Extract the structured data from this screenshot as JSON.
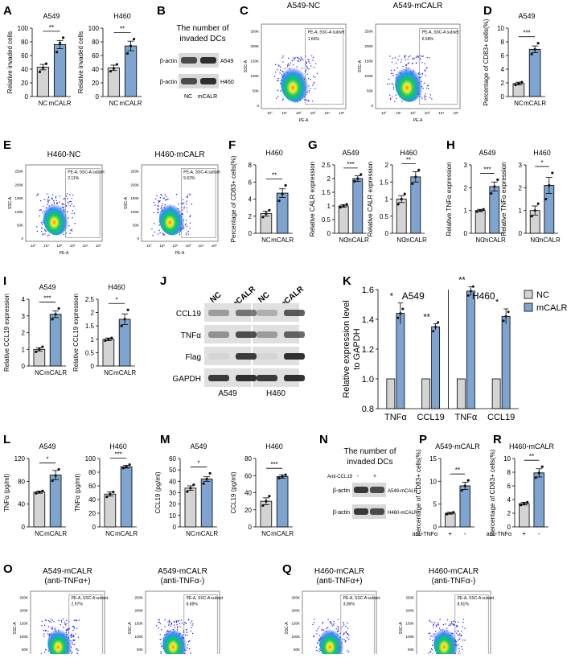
{
  "palette": {
    "nc_fill": "#d4d4d4",
    "mcalr_fill": "#7ea4cf",
    "line": "#000000",
    "point": "#111111",
    "density_low": "#1a1aff",
    "density_mid": "#11cc55",
    "density_high": "#ffee33",
    "density_peak": "#ff8800"
  },
  "panels": {
    "A": "A",
    "B": "B",
    "C": "C",
    "D": "D",
    "E": "E",
    "F": "F",
    "G": "G",
    "H": "H",
    "I": "I",
    "J": "J",
    "K": "K",
    "L": "L",
    "M": "M",
    "N": "N",
    "O": "O",
    "P": "P",
    "Q": "Q",
    "R": "R"
  },
  "flow_common": {
    "xlabel": "PE-A",
    "ylabel": "SSC-A",
    "gate": "PE-A, SSC-A subset",
    "yticks": [
      "250K",
      "200K",
      "150K",
      "100K",
      "50K",
      "0"
    ],
    "xticks": [
      "10°",
      "10¹",
      "10²",
      "10³",
      "10⁴",
      "10⁵"
    ]
  },
  "flow_plots": [
    {
      "title": "A549-NC",
      "pct": "1.66%"
    },
    {
      "title": "A549-mCALR",
      "pct": "6.58%"
    },
    {
      "title": "H460-NC",
      "pct": "2.11%"
    },
    {
      "title": "H460-mCALR",
      "pct": "5.62%"
    },
    {
      "title": "A549-mCALR\n(anti-TNFα+)",
      "pct": "2.97%"
    },
    {
      "title": "A549-mCALR\n(anti-TNFα-)",
      "pct": "8.68%"
    },
    {
      "title": "H460-mCALR\n(anti-TNFα+)",
      "pct": "3.06%"
    },
    {
      "title": "H460-mCALR\n(anti-TNFα-)",
      "pct": "8.61%"
    }
  ],
  "blot_B": {
    "title": "The number of\ninvaded DCs",
    "rows": [
      "β-actin",
      "β-actin"
    ],
    "cells": [
      "A549",
      "H460"
    ],
    "lanes": [
      "NC",
      "mCALR"
    ]
  },
  "blot_J": {
    "rows": [
      "CCL19",
      "TNFα",
      "Flag",
      "GAPDH"
    ],
    "lanes": [
      "NC",
      "mCALR",
      "NC",
      "mCALR"
    ],
    "groups": [
      "A549",
      "H460"
    ]
  },
  "blot_N": {
    "title": "The number of\ninvaded DCs",
    "treat_label": "Anti-CCL19",
    "treat": [
      "-",
      "+"
    ],
    "rows": [
      "β-actin",
      "β-actin"
    ],
    "cells": [
      "A549-mCALR",
      "H460-mCALR"
    ]
  },
  "chart_data": [
    {
      "panel": "A",
      "type": "bar",
      "title": "A549",
      "ylabel": "Relative invaded cells",
      "categories": [
        "NC",
        "mCALR"
      ],
      "values": [
        43,
        76
      ],
      "errors": [
        4,
        6
      ],
      "points": [
        [
          36,
          42,
          48
        ],
        [
          65,
          78,
          86
        ]
      ],
      "ylim": [
        0,
        100
      ],
      "yticks": [
        0,
        20,
        40,
        60,
        80,
        100
      ],
      "sig": "**"
    },
    {
      "panel": "A",
      "type": "bar",
      "title": "H460",
      "ylabel": "Relative invaded cells",
      "categories": [
        "NC",
        "mCALR"
      ],
      "values": [
        42,
        74
      ],
      "errors": [
        4,
        7
      ],
      "points": [
        [
          37,
          41,
          47
        ],
        [
          63,
          74,
          84
        ]
      ],
      "ylim": [
        0,
        100
      ],
      "yticks": [
        0,
        20,
        40,
        60,
        80,
        100
      ],
      "sig": "**"
    },
    {
      "panel": "D",
      "type": "bar",
      "title": "A549",
      "ylabel": "Percentage of CD83+ cells(%)",
      "categories": [
        "NC",
        "mCALR"
      ],
      "values": [
        1.9,
        6.9
      ],
      "errors": [
        0.2,
        0.5
      ],
      "points": [
        [
          1.7,
          1.9,
          2.1
        ],
        [
          6.2,
          6.9,
          7.8
        ]
      ],
      "ylim": [
        0,
        10
      ],
      "yticks": [
        0,
        2,
        4,
        6,
        8,
        10
      ],
      "sig": "***"
    },
    {
      "panel": "F",
      "type": "bar",
      "title": "H460",
      "ylabel": "Percentage of CD83+ cells(%)",
      "categories": [
        "NC",
        "mCALR"
      ],
      "values": [
        2.3,
        4.7
      ],
      "errors": [
        0.3,
        0.5
      ],
      "points": [
        [
          1.9,
          2.3,
          2.7
        ],
        [
          3.8,
          4.6,
          5.6
        ]
      ],
      "ylim": [
        0,
        8
      ],
      "yticks": [
        0,
        2,
        4,
        6,
        8
      ],
      "sig": "**"
    },
    {
      "panel": "G",
      "type": "bar",
      "title": "A549",
      "ylabel": "Relative CALR expression",
      "categories": [
        "NC",
        "mCALR"
      ],
      "values": [
        1.0,
        2.0
      ],
      "errors": [
        0.05,
        0.1
      ],
      "points": [
        [
          0.95,
          1.0,
          1.06
        ],
        [
          1.9,
          2.0,
          2.15
        ]
      ],
      "ylim": [
        0,
        2.5
      ],
      "yticks": [
        0.0,
        0.5,
        1.0,
        1.5,
        2.0,
        2.5
      ],
      "sig": "***"
    },
    {
      "panel": "G",
      "type": "bar",
      "title": "H460",
      "ylabel": "Relative CALR expression",
      "categories": [
        "NC",
        "mCALR"
      ],
      "values": [
        1.0,
        1.65
      ],
      "errors": [
        0.1,
        0.15
      ],
      "points": [
        [
          0.85,
          1.0,
          1.15
        ],
        [
          1.45,
          1.65,
          1.85
        ]
      ],
      "ylim": [
        0,
        2.0
      ],
      "yticks": [
        0.0,
        0.5,
        1.0,
        1.5,
        2.0
      ],
      "sig": "**"
    },
    {
      "panel": "H",
      "type": "bar",
      "title": "A549",
      "ylabel": "Relative TNFα expression",
      "categories": [
        "NC",
        "mCALR"
      ],
      "values": [
        1.0,
        2.05
      ],
      "errors": [
        0.05,
        0.2
      ],
      "points": [
        [
          0.95,
          1.0,
          1.05
        ],
        [
          1.75,
          2.05,
          2.35
        ]
      ],
      "ylim": [
        0,
        3
      ],
      "yticks": [
        0,
        1,
        2,
        3
      ],
      "sig": "***"
    },
    {
      "panel": "H",
      "type": "bar",
      "title": "H460",
      "ylabel": "Relative TNFα expression",
      "categories": [
        "NC",
        "mCALR"
      ],
      "values": [
        1.0,
        2.1
      ],
      "errors": [
        0.2,
        0.35
      ],
      "points": [
        [
          0.75,
          1.0,
          1.3
        ],
        [
          1.5,
          2.1,
          2.65
        ]
      ],
      "ylim": [
        0,
        3
      ],
      "yticks": [
        0,
        1,
        2,
        3
      ],
      "sig": "*"
    },
    {
      "panel": "I",
      "type": "bar",
      "title": "A549",
      "ylabel": "Relative CCL19 expression",
      "categories": [
        "NC",
        "mCALR"
      ],
      "values": [
        1.0,
        3.1
      ],
      "errors": [
        0.1,
        0.2
      ],
      "points": [
        [
          0.85,
          1.0,
          1.15
        ],
        [
          2.8,
          3.1,
          3.45
        ]
      ],
      "ylim": [
        0,
        4
      ],
      "yticks": [
        0,
        1,
        2,
        3,
        4
      ],
      "sig": "***"
    },
    {
      "panel": "I",
      "type": "bar",
      "title": "H460",
      "ylabel": "Relative CCL19 expression",
      "categories": [
        "NC",
        "mCALR"
      ],
      "values": [
        1.0,
        1.75
      ],
      "errors": [
        0.05,
        0.2
      ],
      "points": [
        [
          0.95,
          1.0,
          1.05
        ],
        [
          1.5,
          1.75,
          2.1
        ]
      ],
      "ylim": [
        0,
        2.5
      ],
      "yticks": [
        0.0,
        0.5,
        1.0,
        1.5,
        2.0,
        2.5
      ],
      "sig": "*"
    },
    {
      "panel": "K",
      "type": "bar",
      "ylabel": "Relative expression level\nto GAPDH",
      "groups": [
        "A549",
        "H460"
      ],
      "categories": [
        "TNFα",
        "CCL19",
        "TNFα",
        "CCL19"
      ],
      "series": [
        {
          "name": "NC",
          "values": [
            1.0,
            1.0,
            1.0,
            1.0
          ]
        },
        {
          "name": "mCALR",
          "values": [
            1.44,
            1.35,
            1.59,
            1.42
          ]
        }
      ],
      "errors": [
        0.07,
        0.02,
        0.03,
        0.05
      ],
      "sig": [
        "*",
        "**",
        "**",
        "*"
      ],
      "ylim": [
        0.8,
        1.6
      ],
      "yticks": [
        0.8,
        1.0,
        1.2,
        1.4,
        1.6
      ]
    },
    {
      "panel": "L",
      "type": "bar",
      "title": "A549",
      "ylabel": "TNFα (pg/ml)",
      "categories": [
        "NC",
        "mCALR"
      ],
      "values": [
        61,
        91
      ],
      "errors": [
        2,
        8
      ],
      "points": [
        [
          59,
          61,
          63
        ],
        [
          81,
          90,
          101
        ]
      ],
      "ylim": [
        0,
        120
      ],
      "yticks": [
        0,
        40,
        80,
        120
      ],
      "sig": "*"
    },
    {
      "panel": "L",
      "type": "bar",
      "title": "H460",
      "ylabel": "TNFα (pg/ml)",
      "categories": [
        "NC",
        "mCALR"
      ],
      "values": [
        48,
        88
      ],
      "errors": [
        3,
        2
      ],
      "points": [
        [
          44,
          48,
          51
        ],
        [
          86,
          88,
          91
        ]
      ],
      "ylim": [
        0,
        100
      ],
      "yticks": [
        0,
        20,
        40,
        60,
        80,
        100
      ],
      "sig": "***"
    },
    {
      "panel": "M",
      "type": "bar",
      "title": "A549",
      "ylabel": "CCL19 (pg/ml)",
      "categories": [
        "NC",
        "mCALR"
      ],
      "values": [
        34,
        42
      ],
      "errors": [
        2,
        2
      ],
      "points": [
        [
          31,
          34,
          37
        ],
        [
          38,
          42,
          47
        ]
      ],
      "ylim": [
        0,
        60
      ],
      "yticks": [
        0,
        10,
        20,
        30,
        40,
        50,
        60
      ],
      "sig": "*"
    },
    {
      "panel": "M",
      "type": "bar",
      "title": "H460",
      "ylabel": "CCL19 (pg/ml)",
      "categories": [
        "NC",
        "mCALR"
      ],
      "values": [
        30,
        59
      ],
      "errors": [
        4,
        2
      ],
      "points": [
        [
          25,
          30,
          36
        ],
        [
          57,
          59,
          61
        ]
      ],
      "ylim": [
        0,
        80
      ],
      "yticks": [
        0,
        20,
        40,
        60,
        80
      ],
      "sig": "***"
    },
    {
      "panel": "P",
      "type": "bar",
      "title": "A549-mCALR",
      "ylabel": "Percentage of CD83+ cells(%)",
      "xlabel": "anti-TNFα",
      "categories": [
        "+",
        "-"
      ],
      "values": [
        3.0,
        9.0
      ],
      "errors": [
        0.2,
        0.8
      ],
      "points": [
        [
          2.8,
          3.0,
          3.2
        ],
        [
          8.0,
          9.0,
          10.2
        ]
      ],
      "ylim": [
        0,
        15
      ],
      "yticks": [
        0,
        5,
        10,
        15
      ],
      "sig": "**"
    },
    {
      "panel": "R",
      "type": "bar",
      "title": "H460-mCALR",
      "ylabel": "Percentage of CD83+ cells(%)",
      "xlabel": "anti-TNFα",
      "categories": [
        "+",
        "-"
      ],
      "values": [
        3.4,
        7.9
      ],
      "errors": [
        0.2,
        0.6
      ],
      "points": [
        [
          3.2,
          3.4,
          3.6
        ],
        [
          7.2,
          7.9,
          8.8
        ]
      ],
      "ylim": [
        0,
        10
      ],
      "yticks": [
        0,
        2,
        4,
        6,
        8,
        10
      ],
      "sig": "**"
    }
  ]
}
